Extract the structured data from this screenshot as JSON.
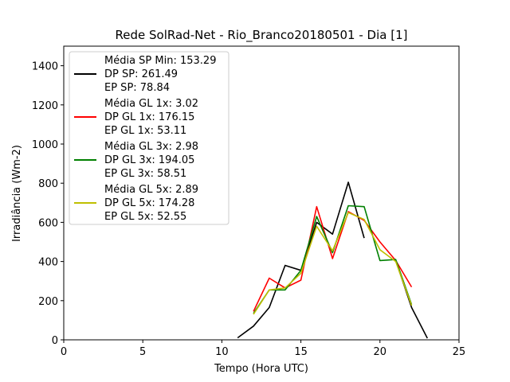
{
  "chart_data": {
    "type": "line",
    "title": "Rede SolRad-Net - Rio_Branco20180501 - Dia [1]",
    "xlabel": "Tempo (Hora UTC)",
    "ylabel": "Irradiância (Wm-2)",
    "xlim": [
      0,
      25
    ],
    "ylim": [
      0,
      1500
    ],
    "xticks": [
      0,
      5,
      10,
      15,
      20,
      25
    ],
    "yticks": [
      0,
      200,
      400,
      600,
      800,
      1000,
      1200,
      1400
    ],
    "grid": false,
    "legend_position": "top-left",
    "series": [
      {
        "color": "#000000",
        "legend": [
          "Média SP Min: 153.29",
          "DP SP: 261.49",
          "EP SP: 78.84"
        ],
        "x": [
          11,
          12,
          13,
          14,
          15,
          16,
          17,
          18,
          19
        ],
        "y": [
          10,
          70,
          165,
          380,
          355,
          600,
          540,
          805,
          520
        ],
        "x2": [
          21,
          22,
          23
        ],
        "y2": [
          405,
          165,
          8
        ]
      },
      {
        "color": "#ff0000",
        "legend": [
          "Média GL 1x: 3.02",
          "DP GL 1x: 176.15",
          "EP GL 1x: 53.11"
        ],
        "x": [
          12,
          13,
          14,
          15,
          16,
          17,
          18,
          19,
          20,
          21,
          22
        ],
        "y": [
          145,
          315,
          265,
          305,
          680,
          415,
          655,
          610,
          500,
          405,
          270
        ]
      },
      {
        "color": "#008000",
        "legend": [
          "Média GL 3x: 2.98",
          "DP GL 3x: 194.05",
          "EP GL 3x: 58.51"
        ],
        "x": [
          12,
          13,
          14,
          15,
          16,
          17,
          18,
          19,
          20,
          21,
          22
        ],
        "y": [
          135,
          255,
          255,
          355,
          630,
          445,
          685,
          680,
          405,
          410,
          180
        ]
      },
      {
        "color": "#bfbf00",
        "legend": [
          "Média GL 5x: 2.89",
          "DP GL 5x: 174.28",
          "EP GL 5x: 52.55"
        ],
        "x": [
          12,
          13,
          14,
          15,
          16,
          17,
          18,
          19,
          20,
          21,
          22
        ],
        "y": [
          130,
          255,
          265,
          340,
          580,
          455,
          650,
          615,
          460,
          400,
          175
        ]
      }
    ]
  }
}
